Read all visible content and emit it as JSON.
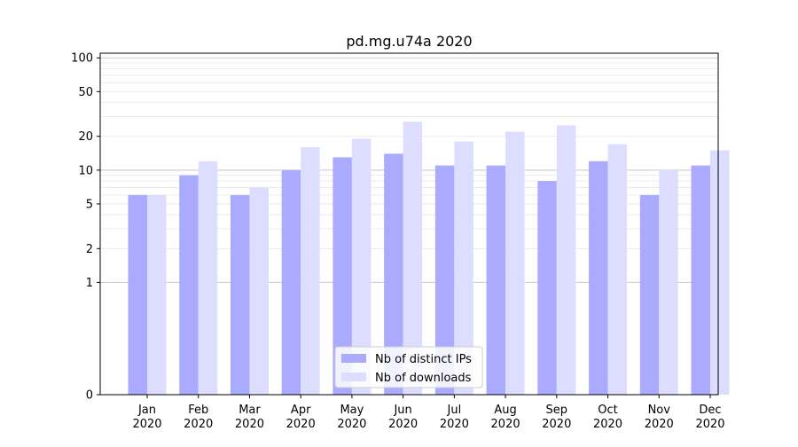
{
  "chart_data": {
    "type": "bar",
    "title": "pd.mg.u74a 2020",
    "xlabel": "",
    "ylabel": "",
    "yscale": "symlog",
    "ylim": [
      0,
      110
    ],
    "yticks": [
      0,
      1,
      2,
      5,
      10,
      20,
      50,
      100
    ],
    "ytick_labels": [
      "0",
      "1",
      "2",
      "5",
      "10",
      "20",
      "50",
      "100"
    ],
    "categories": [
      "Jan\n2020",
      "Feb\n2020",
      "Mar\n2020",
      "Apr\n2020",
      "May\n2020",
      "Jun\n2020",
      "Jul\n2020",
      "Aug\n2020",
      "Sep\n2020",
      "Oct\n2020",
      "Nov\n2020",
      "Dec\n2020"
    ],
    "series": [
      {
        "name": "Nb of distinct IPs",
        "color": "#aaaaff",
        "values": [
          6,
          9,
          6,
          10,
          13,
          14,
          11,
          11,
          8,
          12,
          6,
          11
        ]
      },
      {
        "name": "Nb of downloads",
        "color": "#ddddff",
        "values": [
          6,
          12,
          7,
          16,
          19,
          27,
          18,
          22,
          25,
          17,
          10,
          15
        ]
      }
    ],
    "grid": true,
    "legend_position": "bottom-center"
  }
}
